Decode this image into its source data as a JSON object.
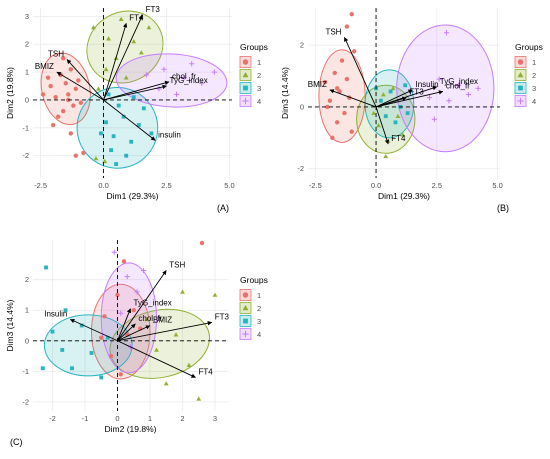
{
  "colors": {
    "group1": "#E8736C",
    "group2": "#8FB030",
    "group3": "#28B4BE",
    "group4": "#C77CFF",
    "grid": "#EBEBEB",
    "axis_text": "#4D4D4D"
  },
  "legend": {
    "title": "Groups",
    "items": [
      {
        "label": "1",
        "shape": "circle"
      },
      {
        "label": "2",
        "shape": "triangle"
      },
      {
        "label": "3",
        "shape": "square"
      },
      {
        "label": "4",
        "shape": "plus"
      }
    ]
  },
  "chart_data": [
    {
      "type": "scatter",
      "panel_label": "(A)",
      "xlabel": "Dim1 (29.3%)",
      "ylabel": "Dim2 (19.8%)",
      "xlim": [
        -2.8,
        5.1
      ],
      "ylim": [
        -2.8,
        3.3
      ],
      "xticks": [
        -2.5,
        0.0,
        2.5,
        5.0
      ],
      "xtick_labels": [
        "-2.5",
        "0.0",
        "2.5",
        "5.0"
      ],
      "yticks": [
        -2,
        -1,
        0,
        1,
        2,
        3
      ],
      "ytick_labels": [
        "-2",
        "-1",
        "0",
        "1",
        "2",
        "3"
      ],
      "ellipses": [
        {
          "group": "1",
          "center": [
            -1.5,
            0.4
          ],
          "rx": 0.95,
          "ry": 1.3,
          "angle": -12
        },
        {
          "group": "2",
          "center": [
            0.85,
            1.9
          ],
          "rx": 1.55,
          "ry": 1.25,
          "angle": -30
        },
        {
          "group": "3",
          "center": [
            0.55,
            -1.0
          ],
          "rx": 1.6,
          "ry": 1.45,
          "angle": -20
        },
        {
          "group": "4",
          "center": [
            2.7,
            0.7
          ],
          "rx": 2.2,
          "ry": 0.95,
          "angle": 3
        }
      ],
      "vectors": [
        {
          "label": "FT3",
          "x": 1.55,
          "y": 3.05
        },
        {
          "label": "FT4",
          "x": 0.9,
          "y": 2.75
        },
        {
          "label": "TSH",
          "x": -1.45,
          "y": 1.45
        },
        {
          "label": "BMIZ",
          "x": -1.85,
          "y": 1.0
        },
        {
          "label": "chol_fr",
          "x": 2.6,
          "y": 0.65
        },
        {
          "label": "TyG_index",
          "x": 2.5,
          "y": 0.5
        },
        {
          "label": "insulin",
          "x": 2.05,
          "y": -1.45
        }
      ],
      "points": [
        {
          "group": "1",
          "x": -2.1,
          "y": 0.5
        },
        {
          "group": "1",
          "x": -1.9,
          "y": 0.1
        },
        {
          "group": "1",
          "x": -1.7,
          "y": 0.9
        },
        {
          "group": "1",
          "x": -1.6,
          "y": -0.4
        },
        {
          "group": "1",
          "x": -1.5,
          "y": 0.6
        },
        {
          "group": "1",
          "x": -1.4,
          "y": 0.2
        },
        {
          "group": "1",
          "x": -1.3,
          "y": 1.1
        },
        {
          "group": "1",
          "x": -1.2,
          "y": -0.2
        },
        {
          "group": "1",
          "x": -1.1,
          "y": 0.4
        },
        {
          "group": "1",
          "x": -1.0,
          "y": 0.7
        },
        {
          "group": "1",
          "x": -1.8,
          "y": -0.6
        },
        {
          "group": "1",
          "x": -2.0,
          "y": -0.9
        },
        {
          "group": "1",
          "x": -1.3,
          "y": -1.2
        },
        {
          "group": "1",
          "x": -0.9,
          "y": -0.1
        },
        {
          "group": "1",
          "x": -1.6,
          "y": 1.5
        },
        {
          "group": "1",
          "x": -2.2,
          "y": 0.8
        },
        {
          "group": "1",
          "x": -0.8,
          "y": -1.9
        },
        {
          "group": "1",
          "x": -1.1,
          "y": -2.0
        },
        {
          "group": "1",
          "x": -2.4,
          "y": 0.2
        },
        {
          "group": "1",
          "x": -1.4,
          "y": 0.0
        },
        {
          "group": "2",
          "x": -0.4,
          "y": 2.6
        },
        {
          "group": "2",
          "x": 0.2,
          "y": 2.2
        },
        {
          "group": "2",
          "x": 0.5,
          "y": 1.5
        },
        {
          "group": "2",
          "x": 1.2,
          "y": 2.1
        },
        {
          "group": "2",
          "x": 0.9,
          "y": 0.8
        },
        {
          "group": "2",
          "x": 1.5,
          "y": 1.7
        },
        {
          "group": "2",
          "x": 0.1,
          "y": 1.1
        },
        {
          "group": "2",
          "x": 1.8,
          "y": 2.6
        },
        {
          "group": "2",
          "x": 0.7,
          "y": 2.9
        },
        {
          "group": "2",
          "x": -0.2,
          "y": 0.4
        },
        {
          "group": "2",
          "x": 0.05,
          "y": -2.2
        },
        {
          "group": "2",
          "x": -0.3,
          "y": -2.1
        },
        {
          "group": "3",
          "x": 0.1,
          "y": -0.8
        },
        {
          "group": "3",
          "x": 0.4,
          "y": -1.3
        },
        {
          "group": "3",
          "x": 0.8,
          "y": -0.6
        },
        {
          "group": "3",
          "x": 1.1,
          "y": -1.5
        },
        {
          "group": "3",
          "x": 0.3,
          "y": -1.8
        },
        {
          "group": "3",
          "x": 1.4,
          "y": -0.9
        },
        {
          "group": "3",
          "x": 0.6,
          "y": -0.2
        },
        {
          "group": "3",
          "x": -0.1,
          "y": -1.2
        },
        {
          "group": "3",
          "x": 1.6,
          "y": -0.3
        },
        {
          "group": "3",
          "x": 0.9,
          "y": -2.0
        },
        {
          "group": "3",
          "x": 0.2,
          "y": 0.2
        },
        {
          "group": "3",
          "x": 1.9,
          "y": -1.2
        },
        {
          "group": "3",
          "x": 0.5,
          "y": -2.3
        },
        {
          "group": "3",
          "x": 1.2,
          "y": 0.1
        },
        {
          "group": "4",
          "x": 1.7,
          "y": 0.9
        },
        {
          "group": "4",
          "x": 2.4,
          "y": 1.1
        },
        {
          "group": "4",
          "x": 3.2,
          "y": 0.8
        },
        {
          "group": "4",
          "x": 3.9,
          "y": 0.6
        },
        {
          "group": "4",
          "x": 2.9,
          "y": 0.2
        },
        {
          "group": "4",
          "x": 4.4,
          "y": 1.0
        },
        {
          "group": "4",
          "x": 2.2,
          "y": 0.4
        },
        {
          "group": "4",
          "x": 3.5,
          "y": 1.3
        }
      ]
    },
    {
      "type": "scatter",
      "panel_label": "(B)",
      "xlabel": "Dim1 (29.3%)",
      "ylabel": "Dim3 (14.4%)",
      "xlim": [
        -2.8,
        5.1
      ],
      "ylim": [
        -2.3,
        3.2
      ],
      "xticks": [
        -2.5,
        0.0,
        2.5,
        5.0
      ],
      "xtick_labels": [
        "-2.5",
        "0.0",
        "2.5",
        "5.0"
      ],
      "yticks": [
        -2,
        0,
        2
      ],
      "ytick_labels": [
        "-2",
        "0",
        "2"
      ],
      "ellipses": [
        {
          "group": "1",
          "center": [
            -1.4,
            0.35
          ],
          "rx": 0.95,
          "ry": 1.5,
          "angle": 0
        },
        {
          "group": "2",
          "center": [
            0.4,
            -0.4
          ],
          "rx": 1.2,
          "ry": 1.1,
          "angle": 0
        },
        {
          "group": "3",
          "center": [
            0.55,
            0.1
          ],
          "rx": 1.0,
          "ry": 1.1,
          "angle": 0
        },
        {
          "group": "4",
          "center": [
            2.85,
            0.6
          ],
          "rx": 2.0,
          "ry": 2.05,
          "angle": 0
        }
      ],
      "vectors": [
        {
          "label": "TSH",
          "x": -1.3,
          "y": 2.25
        },
        {
          "label": "BMIZ",
          "x": -1.9,
          "y": 0.55
        },
        {
          "label": "Insulin",
          "x": 1.5,
          "y": 0.55
        },
        {
          "label": "TyG_index",
          "x": 2.5,
          "y": 0.65
        },
        {
          "label": "chol_fr",
          "x": 2.75,
          "y": 0.5
        },
        {
          "label": "FT3",
          "x": 1.25,
          "y": 0.3
        },
        {
          "label": "FT4",
          "x": 0.5,
          "y": -1.2
        }
      ],
      "points": [
        {
          "group": "1",
          "x": -2.1,
          "y": 0.8
        },
        {
          "group": "1",
          "x": -1.9,
          "y": 0.2
        },
        {
          "group": "1",
          "x": -1.7,
          "y": 1.1
        },
        {
          "group": "1",
          "x": -1.6,
          "y": -0.5
        },
        {
          "group": "1",
          "x": -1.5,
          "y": 0.5
        },
        {
          "group": "1",
          "x": -1.4,
          "y": 1.5
        },
        {
          "group": "1",
          "x": -1.3,
          "y": -0.2
        },
        {
          "group": "1",
          "x": -1.2,
          "y": 0.9
        },
        {
          "group": "1",
          "x": -1.1,
          "y": 0.3
        },
        {
          "group": "1",
          "x": -1.0,
          "y": -0.8
        },
        {
          "group": "1",
          "x": -1.8,
          "y": -1.0
        },
        {
          "group": "1",
          "x": -2.0,
          "y": 0.0
        },
        {
          "group": "1",
          "x": -1.2,
          "y": 2.6
        },
        {
          "group": "1",
          "x": -1.0,
          "y": 3.0
        },
        {
          "group": "1",
          "x": -0.9,
          "y": 1.8
        },
        {
          "group": "1",
          "x": -1.6,
          "y": 0.6
        },
        {
          "group": "2",
          "x": 0.1,
          "y": -0.6
        },
        {
          "group": "2",
          "x": 0.5,
          "y": -1.1
        },
        {
          "group": "2",
          "x": 0.9,
          "y": -0.3
        },
        {
          "group": "2",
          "x": 0.3,
          "y": 0.4
        },
        {
          "group": "2",
          "x": 1.1,
          "y": -0.9
        },
        {
          "group": "2",
          "x": 0.7,
          "y": 0.6
        },
        {
          "group": "2",
          "x": -0.1,
          "y": -0.2
        },
        {
          "group": "2",
          "x": 0.4,
          "y": -1.6
        },
        {
          "group": "3",
          "x": 0.2,
          "y": 0.2
        },
        {
          "group": "3",
          "x": 0.6,
          "y": 0.5
        },
        {
          "group": "3",
          "x": 1.0,
          "y": 0.0
        },
        {
          "group": "3",
          "x": 0.8,
          "y": -0.5
        },
        {
          "group": "3",
          "x": 0.4,
          "y": -0.3
        },
        {
          "group": "3",
          "x": 1.2,
          "y": 0.7
        },
        {
          "group": "3",
          "x": 0.0,
          "y": 0.6
        },
        {
          "group": "3",
          "x": 1.3,
          "y": -0.2
        },
        {
          "group": "4",
          "x": 2.2,
          "y": 0.3
        },
        {
          "group": "4",
          "x": 2.6,
          "y": 0.9
        },
        {
          "group": "4",
          "x": 3.0,
          "y": 0.2
        },
        {
          "group": "4",
          "x": 3.4,
          "y": 0.7
        },
        {
          "group": "4",
          "x": 3.8,
          "y": 0.4
        },
        {
          "group": "4",
          "x": 4.2,
          "y": 0.6
        },
        {
          "group": "4",
          "x": 2.9,
          "y": 2.4
        },
        {
          "group": "4",
          "x": 2.4,
          "y": -0.4
        }
      ]
    },
    {
      "type": "scatter",
      "panel_label": "(C)",
      "xlabel": "Dim2 (19.8%)",
      "ylabel": "Dim3 (14.4%)",
      "xlim": [
        -2.6,
        3.4
      ],
      "ylim": [
        -2.3,
        3.3
      ],
      "xticks": [
        -2,
        -1,
        0,
        1,
        2,
        3
      ],
      "xtick_labels": [
        "-2",
        "-1",
        "0",
        "1",
        "2",
        "3"
      ],
      "yticks": [
        -2,
        -1,
        0,
        1,
        2
      ],
      "ytick_labels": [
        "-2",
        "-1",
        "0",
        "1",
        "2"
      ],
      "ellipses": [
        {
          "group": "1",
          "center": [
            0.1,
            0.3
          ],
          "rx": 0.9,
          "ry": 1.55,
          "angle": 0
        },
        {
          "group": "2",
          "center": [
            1.3,
            -0.1
          ],
          "rx": 1.55,
          "ry": 1.1,
          "angle": -12
        },
        {
          "group": "3",
          "center": [
            -0.9,
            -0.15
          ],
          "rx": 1.35,
          "ry": 1.0,
          "angle": 0
        },
        {
          "group": "4",
          "center": [
            0.35,
            0.75
          ],
          "rx": 0.85,
          "ry": 1.8,
          "angle": 0
        }
      ],
      "vectors": [
        {
          "label": "TSH",
          "x": 1.5,
          "y": 2.3
        },
        {
          "label": "FT3",
          "x": 2.9,
          "y": 0.6
        },
        {
          "label": "FT4",
          "x": 2.4,
          "y": -1.2
        },
        {
          "label": "BMIZ",
          "x": 1.0,
          "y": 0.5
        },
        {
          "label": "TyG_index",
          "x": 0.4,
          "y": 1.05
        },
        {
          "label": "chol_fr",
          "x": 0.55,
          "y": 0.55
        },
        {
          "label": "Insulin",
          "x": -1.45,
          "y": 0.7
        }
      ],
      "points": [
        {
          "group": "1",
          "x": -0.4,
          "y": 0.8
        },
        {
          "group": "1",
          "x": 0.0,
          "y": 1.5
        },
        {
          "group": "1",
          "x": 0.3,
          "y": 0.2
        },
        {
          "group": "1",
          "x": -0.2,
          "y": -0.5
        },
        {
          "group": "1",
          "x": 0.5,
          "y": 1.0
        },
        {
          "group": "1",
          "x": 0.1,
          "y": -1.1
        },
        {
          "group": "1",
          "x": 0.7,
          "y": 0.4
        },
        {
          "group": "1",
          "x": -0.5,
          "y": 0.1
        },
        {
          "group": "1",
          "x": 2.6,
          "y": 3.2
        },
        {
          "group": "1",
          "x": 0.2,
          "y": 2.6
        },
        {
          "group": "2",
          "x": 1.2,
          "y": -0.3
        },
        {
          "group": "2",
          "x": 1.8,
          "y": 0.2
        },
        {
          "group": "2",
          "x": 2.2,
          "y": -0.8
        },
        {
          "group": "2",
          "x": 1.5,
          "y": -1.4
        },
        {
          "group": "2",
          "x": 3.0,
          "y": 1.5
        },
        {
          "group": "2",
          "x": 2.5,
          "y": -1.9
        },
        {
          "group": "2",
          "x": 0.9,
          "y": 0.7
        },
        {
          "group": "2",
          "x": 2.0,
          "y": 1.6
        },
        {
          "group": "3",
          "x": -2.2,
          "y": 2.4
        },
        {
          "group": "3",
          "x": -2.0,
          "y": 0.3
        },
        {
          "group": "3",
          "x": -1.7,
          "y": -0.3
        },
        {
          "group": "3",
          "x": -1.4,
          "y": -0.9
        },
        {
          "group": "3",
          "x": -1.1,
          "y": 0.5
        },
        {
          "group": "3",
          "x": -0.8,
          "y": -0.4
        },
        {
          "group": "3",
          "x": -0.5,
          "y": -1.2
        },
        {
          "group": "3",
          "x": -2.3,
          "y": -0.9
        },
        {
          "group": "3",
          "x": -1.6,
          "y": 1.0
        },
        {
          "group": "3",
          "x": -0.3,
          "y": 0.1
        },
        {
          "group": "4",
          "x": 0.3,
          "y": 2.1
        },
        {
          "group": "4",
          "x": 0.6,
          "y": 1.6
        },
        {
          "group": "4",
          "x": 0.1,
          "y": 0.9
        },
        {
          "group": "4",
          "x": 0.8,
          "y": 2.3
        },
        {
          "group": "4",
          "x": 0.4,
          "y": -0.2
        },
        {
          "group": "4",
          "x": -0.1,
          "y": 2.9
        }
      ]
    }
  ]
}
